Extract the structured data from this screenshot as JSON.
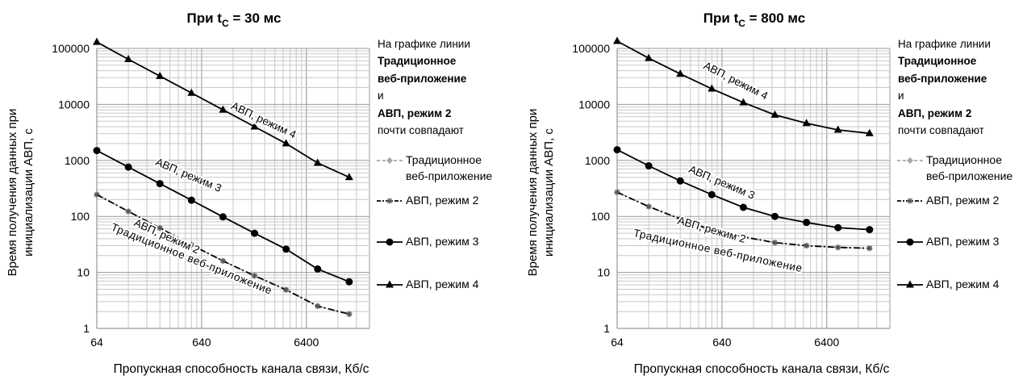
{
  "chart_data": [
    {
      "type": "line",
      "title_prefix": "При t",
      "title_sub": "C",
      "title_suffix": " = 30 мс",
      "ylabel_line1": "Время получения данных при",
      "ylabel_line2": "инициализации АВП, с",
      "xlabel": "Пропускная способность канала связи, Кб/с",
      "x_scale": "log",
      "y_scale": "log",
      "xlim": [
        64,
        25600
      ],
      "ylim": [
        1,
        100000
      ],
      "x_ticks": [
        64,
        640,
        6400
      ],
      "x_tick_labels": [
        "64",
        "640",
        "6400"
      ],
      "y_ticks": [
        1,
        10,
        100,
        1000,
        10000,
        100000
      ],
      "y_tick_labels": [
        "1",
        "10",
        "100",
        "1000",
        "10000",
        "100000"
      ],
      "grid": true,
      "legend_position": "right",
      "x": [
        64,
        128,
        256,
        512,
        1024,
        2048,
        4096,
        8192,
        16384
      ],
      "series": [
        {
          "name": "Традиционное веб-приложение",
          "color": "#a6a6a6",
          "dash": "dashed",
          "marker": "diamond",
          "values": [
            245,
            123,
            62,
            31,
            16,
            8.7,
            4.9,
            2.5,
            1.8
          ]
        },
        {
          "name": "АВП, режим 2",
          "color": "#000000",
          "dash": "dashdot",
          "marker": "asterisk",
          "values": [
            245,
            123,
            62,
            31,
            16,
            8.7,
            4.9,
            2.5,
            1.8
          ]
        },
        {
          "name": "АВП, режим 3",
          "color": "#000000",
          "dash": "solid",
          "marker": "circle",
          "values": [
            1500,
            760,
            385,
            195,
            98,
            50,
            26,
            11.5,
            6.8
          ]
        },
        {
          "name": "АВП, режим 4",
          "color": "#000000",
          "dash": "solid",
          "marker": "triangle",
          "values": [
            130000,
            64000,
            32000,
            16000,
            8000,
            4000,
            2000,
            900,
            500
          ]
        }
      ],
      "curve_labels": [
        "АВП, режим 4",
        "АВП, режим 3",
        "АВП, режим 2",
        "Традиционное веб-приложение"
      ],
      "note": {
        "line1": "На графике линии",
        "line2": "Традиционное",
        "line3": "веб-приложение",
        "line4": "и",
        "line5": "АВП, режим 2",
        "line6": "почти совпадают"
      }
    },
    {
      "type": "line",
      "title_prefix": "При t",
      "title_sub": "C",
      "title_suffix": " = 800 мс",
      "ylabel_line1": "Время получения данных при",
      "ylabel_line2": "инициализации АВП, с",
      "xlabel": "Пропускная способность канала связи, Кб/с",
      "x_scale": "log",
      "y_scale": "log",
      "xlim": [
        64,
        25600
      ],
      "ylim": [
        1,
        100000
      ],
      "x_ticks": [
        64,
        640,
        6400
      ],
      "x_tick_labels": [
        "64",
        "640",
        "6400"
      ],
      "y_ticks": [
        1,
        10,
        100,
        1000,
        10000,
        100000
      ],
      "y_tick_labels": [
        "1",
        "10",
        "100",
        "1000",
        "10000",
        "100000"
      ],
      "grid": true,
      "legend_position": "right",
      "x": [
        64,
        128,
        256,
        512,
        1024,
        2048,
        4096,
        8192,
        16384
      ],
      "series": [
        {
          "name": "Традиционное веб-приложение",
          "color": "#a6a6a6",
          "dash": "dashed",
          "marker": "diamond",
          "values": [
            270,
            150,
            90,
            57,
            43,
            34,
            30,
            28,
            27
          ]
        },
        {
          "name": "АВП, режим 2",
          "color": "#000000",
          "dash": "dashdot",
          "marker": "asterisk",
          "values": [
            270,
            150,
            90,
            57,
            43,
            34,
            30,
            28,
            27
          ]
        },
        {
          "name": "АВП, режим 3",
          "color": "#000000",
          "dash": "solid",
          "marker": "circle",
          "values": [
            1550,
            800,
            430,
            245,
            145,
            100,
            78,
            63,
            58
          ]
        },
        {
          "name": "АВП, режим 4",
          "color": "#000000",
          "dash": "solid",
          "marker": "triangle",
          "values": [
            135000,
            67000,
            35000,
            19000,
            10800,
            6500,
            4600,
            3500,
            3050
          ]
        }
      ],
      "curve_labels": [
        "АВП, режим 4",
        "АВП, режим 3",
        "АВП, режим 2",
        "Традиционное веб-приложение"
      ],
      "note": {
        "line1": "На графике линии",
        "line2": "Традиционное",
        "line3": "веб-приложение",
        "line4": "и",
        "line5": "АВП, режим 2",
        "line6": "почти совпадают"
      }
    }
  ]
}
